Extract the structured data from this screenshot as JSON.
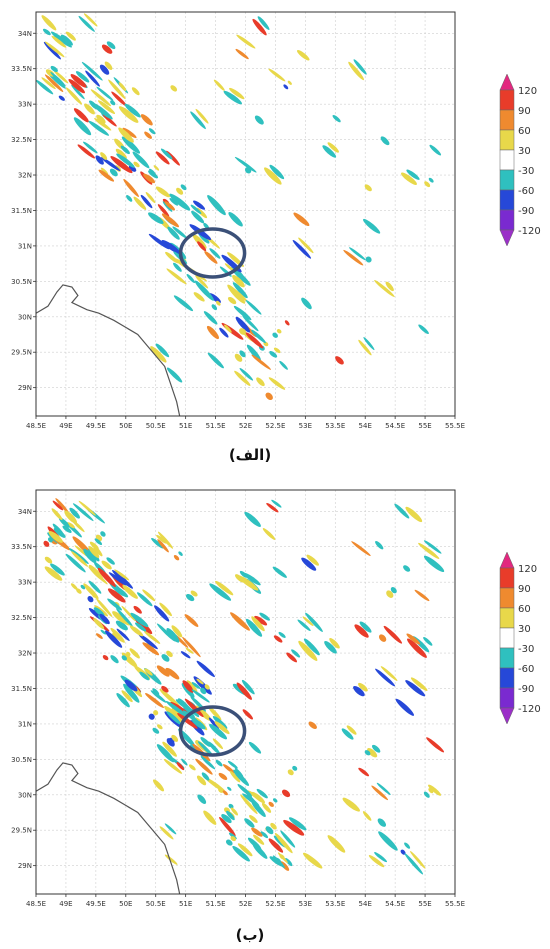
{
  "panels": [
    {
      "caption": "(الف)",
      "lat_labels": [
        "34N",
        "33.5N",
        "33N",
        "32.5N",
        "32N",
        "31.5N",
        "31N",
        "30.5N",
        "30N",
        "29.5N",
        "29N"
      ],
      "lon_labels": [
        "48.5E",
        "49E",
        "49.5E",
        "50E",
        "50.5E",
        "51E",
        "51.5E",
        "52E",
        "52.5E",
        "53E",
        "53.5E",
        "54E",
        "54.5E",
        "55E",
        "55.5E"
      ]
    },
    {
      "caption": "(ب)",
      "lat_labels": [
        "34N",
        "33.5N",
        "33N",
        "32.5N",
        "32N",
        "31.5N",
        "31N",
        "30.5N",
        "30N",
        "29.5N",
        "29N"
      ],
      "lon_labels": [
        "48.5E",
        "49E",
        "49.5E",
        "50E",
        "50.5E",
        "51E",
        "51.5E",
        "52E",
        "52.5E",
        "53E",
        "53.5E",
        "54E",
        "54.5E",
        "55E",
        "55.5E"
      ]
    }
  ],
  "colorbar": {
    "labels": [
      "120",
      "90",
      "60",
      "30",
      "-30",
      "-60",
      "-90",
      "-120"
    ],
    "colors": [
      "#e2287f",
      "#e83c2a",
      "#ef8a2f",
      "#e8d84a",
      "#ffffff",
      "#2fc0bf",
      "#2648d8",
      "#7a2ad0",
      "#9b2fc8"
    ]
  },
  "map": {
    "lat_range": [
      28.6,
      34.3
    ],
    "lon_range": [
      48.5,
      55.5
    ],
    "highlight_center": [
      51.45,
      30.9
    ]
  }
}
